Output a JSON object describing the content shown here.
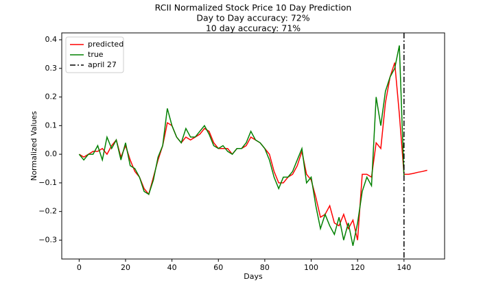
{
  "chart_data": {
    "type": "line",
    "title": [
      "RCII Normalized Stock Price 10 Day Prediction",
      "Day to Day accuracy: 72%",
      "10 day accuracy: 71%"
    ],
    "x_label": "Days",
    "y_label": "Normalized Values",
    "xlim": [
      -7.5,
      157.5
    ],
    "ylim": [
      -0.366,
      0.424
    ],
    "xticks": [
      0,
      20,
      40,
      60,
      80,
      100,
      120,
      140
    ],
    "yticks": [
      {
        "value": -0.3,
        "label": "−0.3"
      },
      {
        "value": -0.2,
        "label": "−0.2"
      },
      {
        "value": -0.1,
        "label": "−0.1"
      },
      {
        "value": 0,
        "label": "0.0"
      },
      0.1,
      0.2,
      0.3,
      0.4
    ],
    "legend": "upper left",
    "series": [
      {
        "name": "predicted",
        "color": "#ff0000",
        "x": [
          0,
          2,
          4,
          6,
          8,
          10,
          12,
          14,
          16,
          18,
          20,
          22,
          24,
          26,
          28,
          30,
          32,
          34,
          36,
          38,
          40,
          42,
          44,
          46,
          48,
          50,
          52,
          54,
          56,
          58,
          60,
          62,
          64,
          66,
          68,
          70,
          72,
          74,
          76,
          78,
          80,
          82,
          84,
          86,
          88,
          90,
          92,
          94,
          96,
          98,
          100,
          102,
          104,
          106,
          108,
          110,
          112,
          114,
          116,
          118,
          120,
          122,
          124,
          126,
          128,
          130,
          132,
          134,
          136,
          138,
          140,
          142,
          144,
          146,
          148,
          150
        ],
        "values": [
          0.0,
          -0.01,
          0.0,
          0.01,
          0.01,
          0.02,
          0.0,
          0.03,
          0.05,
          -0.01,
          0.03,
          -0.02,
          -0.06,
          -0.08,
          -0.12,
          -0.14,
          -0.08,
          -0.02,
          0.03,
          0.11,
          0.1,
          0.06,
          0.04,
          0.06,
          0.05,
          0.06,
          0.07,
          0.09,
          0.08,
          0.04,
          0.02,
          0.02,
          0.02,
          0.0,
          0.02,
          0.02,
          0.03,
          0.06,
          0.05,
          0.04,
          0.02,
          0.0,
          -0.06,
          -0.1,
          -0.1,
          -0.08,
          -0.07,
          -0.04,
          0.01,
          -0.07,
          -0.09,
          -0.15,
          -0.22,
          -0.21,
          -0.18,
          -0.24,
          -0.25,
          -0.21,
          -0.26,
          -0.23,
          -0.3,
          -0.07,
          -0.07,
          -0.08,
          0.04,
          0.02,
          0.18,
          0.27,
          0.32,
          0.14,
          -0.07,
          -0.07,
          -0.067,
          -0.063,
          -0.06,
          -0.056
        ]
      },
      {
        "name": "true",
        "color": "#008000",
        "x": [
          0,
          2,
          4,
          6,
          8,
          10,
          12,
          14,
          16,
          18,
          20,
          22,
          24,
          26,
          28,
          30,
          32,
          34,
          36,
          38,
          40,
          42,
          44,
          46,
          48,
          50,
          52,
          54,
          56,
          58,
          60,
          62,
          64,
          66,
          68,
          70,
          72,
          74,
          76,
          78,
          80,
          82,
          84,
          86,
          88,
          90,
          92,
          94,
          96,
          98,
          100,
          102,
          104,
          106,
          108,
          110,
          112,
          114,
          116,
          118,
          120,
          122,
          124,
          126,
          128,
          130,
          132,
          134,
          136,
          138,
          140
        ],
        "values": [
          0.0,
          -0.02,
          0.0,
          0.0,
          0.03,
          -0.02,
          0.06,
          0.02,
          0.05,
          -0.02,
          0.04,
          -0.04,
          -0.05,
          -0.08,
          -0.13,
          -0.14,
          -0.09,
          -0.01,
          0.03,
          0.16,
          0.1,
          0.06,
          0.04,
          0.09,
          0.06,
          0.06,
          0.08,
          0.1,
          0.07,
          0.03,
          0.02,
          0.03,
          0.01,
          0.0,
          0.02,
          0.02,
          0.04,
          0.08,
          0.05,
          0.04,
          0.02,
          -0.02,
          -0.08,
          -0.12,
          -0.08,
          -0.08,
          -0.06,
          -0.02,
          0.02,
          -0.1,
          -0.08,
          -0.18,
          -0.26,
          -0.21,
          -0.25,
          -0.28,
          -0.22,
          -0.3,
          -0.24,
          -0.32,
          -0.24,
          -0.13,
          -0.08,
          -0.11,
          0.2,
          0.1,
          0.22,
          0.27,
          0.3,
          0.38,
          -0.08
        ]
      }
    ],
    "vline": {
      "name": "april 27",
      "x": 140,
      "color": "#000000"
    }
  }
}
